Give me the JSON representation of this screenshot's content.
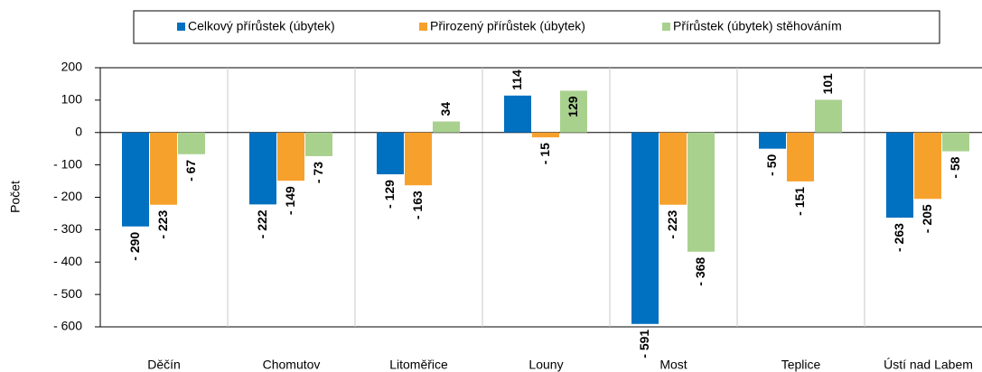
{
  "chart_data": {
    "type": "bar",
    "y_label": "Počet",
    "categories": [
      "Děčín",
      "Chomutov",
      "Litoměřice",
      "Louny",
      "Most",
      "Teplice",
      "Ústí nad Labem"
    ],
    "series": [
      {
        "name": "Celkový přírůstek (úbytek)",
        "color": "#0070c0",
        "label_color": "#1f3864",
        "values": [
          -290,
          -222,
          -129,
          114,
          -591,
          -50,
          -263
        ],
        "value_labels": [
          "- 290",
          "- 222",
          "- 129",
          "114",
          "- 591",
          "- 50",
          "- 263"
        ]
      },
      {
        "name": "Přirozený přírůstek (úbytek)",
        "color": "#f7a12d",
        "label_color": "#c55a11",
        "values": [
          -223,
          -149,
          -163,
          -15,
          -223,
          -151,
          -205
        ],
        "value_labels": [
          "- 223",
          "- 149",
          "- 163",
          "- 15",
          "- 223",
          "- 151",
          "- 205"
        ]
      },
      {
        "name": "Přírůstek (úbytek) stěhováním",
        "color": "#a9d18e",
        "label_color": "#548235",
        "values": [
          -67,
          -73,
          34,
          129,
          -368,
          101,
          -58
        ],
        "value_labels": [
          "- 67",
          "- 73",
          "34",
          "129",
          "- 368",
          "101",
          "- 58"
        ]
      }
    ],
    "ylim": [
      -600,
      200
    ],
    "yticks": [
      {
        "value": -600,
        "label": "- 600"
      },
      {
        "value": -500,
        "label": "- 500"
      },
      {
        "value": -400,
        "label": "- 400"
      },
      {
        "value": -300,
        "label": "- 300"
      },
      {
        "value": -200,
        "label": "- 200"
      },
      {
        "value": -100,
        "label": "- 100"
      },
      0,
      100,
      200
    ],
    "legend": "top"
  }
}
